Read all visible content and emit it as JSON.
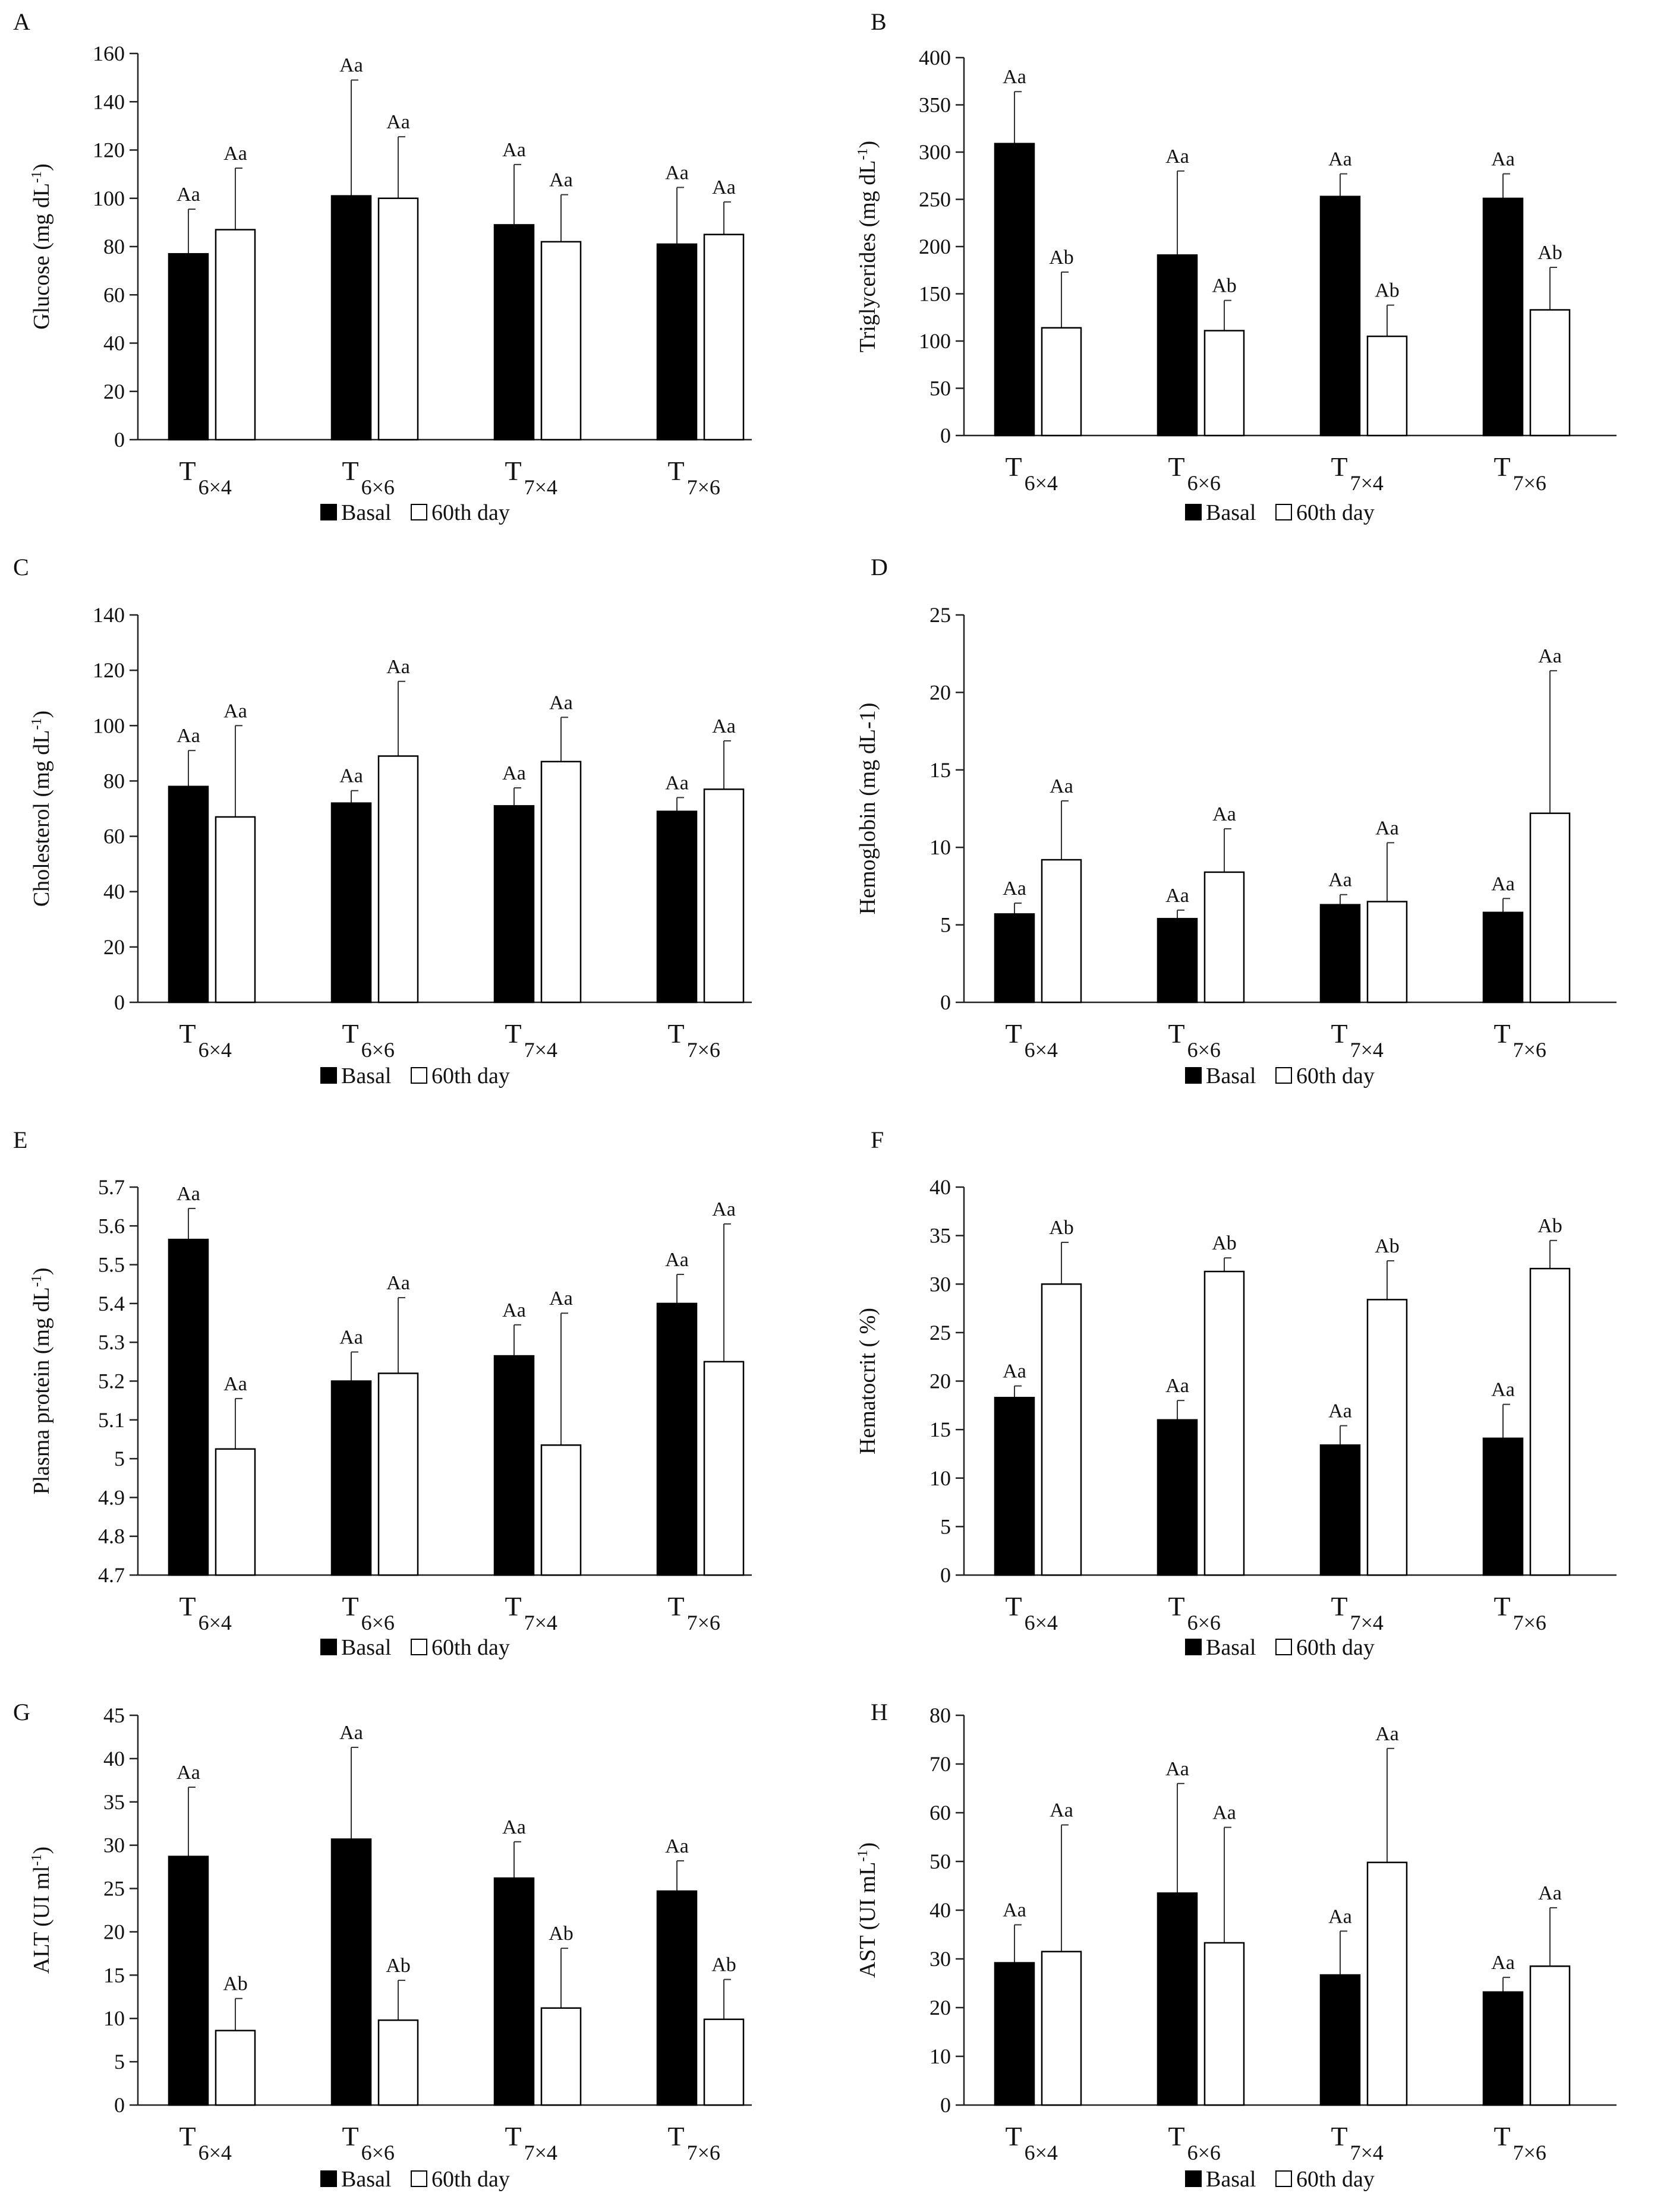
{
  "figure": {
    "legend": {
      "basal": "Basal",
      "day60": "60th day"
    },
    "colors": {
      "basal": "#000000",
      "day60": "#ffffff",
      "stroke": "#000000",
      "text": "#111111"
    }
  },
  "chart_data": [
    {
      "panel": "A",
      "type": "bar",
      "ylabel": "Glucose (mg dL",
      "ylabel_sup": "-1",
      "ylabel_end": ")",
      "ylim": [
        0,
        160
      ],
      "ticks": [
        0,
        20,
        40,
        60,
        80,
        100,
        120,
        140,
        160
      ],
      "categories": [
        {
          "base": "T",
          "sub": "6×4"
        },
        {
          "base": "T",
          "sub": "6×6"
        },
        {
          "base": "T",
          "sub": "7×4"
        },
        {
          "base": "T",
          "sub": "7×6"
        }
      ],
      "series": [
        {
          "name": "Basal",
          "values": [
            77,
            101,
            89,
            81
          ],
          "errors": [
            18.5,
            48,
            25,
            23.5
          ],
          "labels": [
            "Aa",
            "Aa",
            "Aa",
            "Aa"
          ]
        },
        {
          "name": "60th day",
          "values": [
            87,
            100,
            82,
            85
          ],
          "errors": [
            25.5,
            25.5,
            19.5,
            13.5
          ],
          "labels": [
            "Aa",
            "Aa",
            "Aa",
            "Aa"
          ]
        }
      ]
    },
    {
      "panel": "B",
      "type": "bar",
      "ylabel": "Triglycerides (mg dL",
      "ylabel_sup": "-1",
      "ylabel_end": ")",
      "ylim": [
        0,
        400
      ],
      "ticks": [
        0,
        50,
        100,
        150,
        200,
        250,
        300,
        350,
        400
      ],
      "categories": [
        {
          "base": "T",
          "sub": "6×4"
        },
        {
          "base": "T",
          "sub": "6×6"
        },
        {
          "base": "T",
          "sub": "7×4"
        },
        {
          "base": "T",
          "sub": "7×6"
        }
      ],
      "series": [
        {
          "name": "Basal",
          "values": [
            309,
            191,
            253,
            251
          ],
          "errors": [
            55,
            89,
            24,
            26
          ],
          "labels": [
            "Aa",
            "Aa",
            "Aa",
            "Aa"
          ]
        },
        {
          "name": "60th day",
          "values": [
            114,
            111,
            105,
            133
          ],
          "errors": [
            59,
            32,
            33,
            45
          ],
          "labels": [
            "Ab",
            "Ab",
            "Ab",
            "Ab"
          ]
        }
      ]
    },
    {
      "panel": "C",
      "type": "bar",
      "ylabel": "Cholesterol (mg dL",
      "ylabel_sup": "-1",
      "ylabel_end": ")",
      "ylim": [
        0,
        140
      ],
      "ticks": [
        0,
        20,
        40,
        60,
        80,
        100,
        120,
        140
      ],
      "categories": [
        {
          "base": "T",
          "sub": "6×4"
        },
        {
          "base": "T",
          "sub": "6×6"
        },
        {
          "base": "T",
          "sub": "7×4"
        },
        {
          "base": "T",
          "sub": "7×6"
        }
      ],
      "series": [
        {
          "name": "Basal",
          "values": [
            78,
            72,
            71,
            69
          ],
          "errors": [
            13,
            4.5,
            6.5,
            5
          ],
          "labels": [
            "Aa",
            "Aa",
            "Aa",
            "Aa"
          ]
        },
        {
          "name": "60th day",
          "values": [
            67,
            89,
            87,
            77
          ],
          "errors": [
            33,
            27,
            16,
            17.5
          ],
          "labels": [
            "Aa",
            "Aa",
            "Aa",
            "Aa"
          ]
        }
      ]
    },
    {
      "panel": "D",
      "type": "bar",
      "ylabel": "Hemoglobin (mg dL-1)",
      "ylabel_sup": "",
      "ylabel_end": "",
      "ylim": [
        0,
        25
      ],
      "ticks": [
        0,
        5,
        10,
        15,
        20,
        25
      ],
      "categories": [
        {
          "base": "T",
          "sub": "6×4"
        },
        {
          "base": "T",
          "sub": "6×6"
        },
        {
          "base": "T",
          "sub": "7×4"
        },
        {
          "base": "T",
          "sub": "7×6"
        }
      ],
      "series": [
        {
          "name": "Basal",
          "values": [
            5.7,
            5.4,
            6.3,
            5.8
          ],
          "errors": [
            0.7,
            0.55,
            0.65,
            0.9
          ],
          "labels": [
            "Aa",
            "Aa",
            "Aa",
            "Aa"
          ]
        },
        {
          "name": "60th day",
          "values": [
            9.2,
            8.4,
            6.5,
            12.2
          ],
          "errors": [
            3.8,
            2.8,
            3.8,
            9.2
          ],
          "labels": [
            "Aa",
            "Aa",
            "Aa",
            "Aa"
          ]
        }
      ]
    },
    {
      "panel": "E",
      "type": "bar",
      "ylabel": "Plasma protein (mg dL",
      "ylabel_sup": "-1",
      "ylabel_end": ")",
      "ylim": [
        4.7,
        5.7
      ],
      "ticks": [
        4.7,
        4.8,
        4.9,
        5,
        5.1,
        5.2,
        5.3,
        5.4,
        5.5,
        5.6,
        5.7
      ],
      "categories": [
        {
          "base": "T",
          "sub": "6×4"
        },
        {
          "base": "T",
          "sub": "6×6"
        },
        {
          "base": "T",
          "sub": "7×4"
        },
        {
          "base": "T",
          "sub": "7×6"
        }
      ],
      "series": [
        {
          "name": "Basal",
          "values": [
            5.565,
            5.2,
            5.265,
            5.4
          ],
          "errors": [
            0.08,
            0.075,
            0.08,
            0.075
          ],
          "labels": [
            "Aa",
            "Aa",
            "Aa",
            "Aa"
          ]
        },
        {
          "name": "60th day",
          "values": [
            5.025,
            5.22,
            5.035,
            5.25
          ],
          "errors": [
            0.13,
            0.195,
            0.34,
            0.355
          ],
          "labels": [
            "Aa",
            "Aa",
            "Aa",
            "Aa"
          ]
        }
      ]
    },
    {
      "panel": "F",
      "type": "bar",
      "ylabel": "Hematocrit ( %)",
      "ylabel_sup": "",
      "ylabel_end": "",
      "ylim": [
        0,
        40
      ],
      "ticks": [
        0,
        5,
        10,
        15,
        20,
        25,
        30,
        35,
        40
      ],
      "categories": [
        {
          "base": "T",
          "sub": "6×4"
        },
        {
          "base": "T",
          "sub": "6×6"
        },
        {
          "base": "T",
          "sub": "7×4"
        },
        {
          "base": "T",
          "sub": "7×6"
        }
      ],
      "series": [
        {
          "name": "Basal",
          "values": [
            18.3,
            16,
            13.4,
            14.1
          ],
          "errors": [
            1.2,
            2,
            2,
            3.5
          ],
          "labels": [
            "Aa",
            "Aa",
            "Aa",
            "Aa"
          ]
        },
        {
          "name": "60th day",
          "values": [
            30,
            31.3,
            28.4,
            31.6
          ],
          "errors": [
            4.3,
            1.4,
            4,
            2.9
          ],
          "labels": [
            "Ab",
            "Ab",
            "Ab",
            "Ab"
          ]
        }
      ]
    },
    {
      "panel": "G",
      "type": "bar",
      "ylabel": "ALT (UI ml",
      "ylabel_sup": "-1",
      "ylabel_end": ")",
      "ylim": [
        0,
        45
      ],
      "ticks": [
        0,
        5,
        10,
        15,
        20,
        25,
        30,
        35,
        40,
        45
      ],
      "categories": [
        {
          "base": "T",
          "sub": "6×4"
        },
        {
          "base": "T",
          "sub": "6×6"
        },
        {
          "base": "T",
          "sub": "7×4"
        },
        {
          "base": "T",
          "sub": "7×6"
        }
      ],
      "series": [
        {
          "name": "Basal",
          "values": [
            28.7,
            30.7,
            26.2,
            24.7
          ],
          "errors": [
            8,
            10.6,
            4.2,
            3.5
          ],
          "labels": [
            "Aa",
            "Aa",
            "Aa",
            "Aa"
          ]
        },
        {
          "name": "60th day",
          "values": [
            8.6,
            9.8,
            11.2,
            9.9
          ],
          "errors": [
            3.7,
            4.6,
            6.9,
            4.6
          ],
          "labels": [
            "Ab",
            "Ab",
            "Ab",
            "Ab"
          ]
        }
      ]
    },
    {
      "panel": "H",
      "type": "bar",
      "ylabel": "AST (UI mL",
      "ylabel_sup": "-1",
      "ylabel_end": ")",
      "ylim": [
        0,
        80
      ],
      "ticks": [
        0,
        10,
        20,
        30,
        40,
        50,
        60,
        70,
        80
      ],
      "categories": [
        {
          "base": "T",
          "sub": "6×4"
        },
        {
          "base": "T",
          "sub": "6×6"
        },
        {
          "base": "T",
          "sub": "7×4"
        },
        {
          "base": "T",
          "sub": "7×6"
        }
      ],
      "series": [
        {
          "name": "Basal",
          "values": [
            29.2,
            43.5,
            26.7,
            23.2
          ],
          "errors": [
            7.8,
            22.5,
            9,
            3
          ],
          "labels": [
            "Aa",
            "Aa",
            "Aa",
            "Aa"
          ]
        },
        {
          "name": "60th day",
          "values": [
            31.5,
            33.3,
            49.8,
            28.5
          ],
          "errors": [
            26,
            23.7,
            23.4,
            12
          ],
          "labels": [
            "Aa",
            "Aa",
            "Aa",
            "Aa"
          ]
        }
      ]
    }
  ]
}
